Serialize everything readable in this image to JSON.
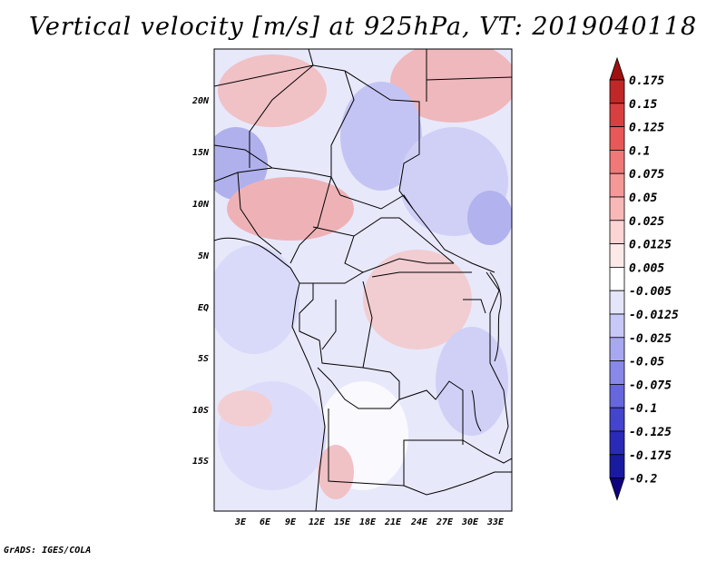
{
  "title": "Vertical velocity [m/s] at 925hPa, VT: 2019040118",
  "credit": "GrADS: IGES/COLA",
  "map": {
    "lat_ticks": [
      "20N",
      "15N",
      "10N",
      "5N",
      "EQ",
      "5S",
      "10S",
      "15S"
    ],
    "lon_ticks": [
      "3E",
      "6E",
      "9E",
      "12E",
      "15E",
      "18E",
      "21E",
      "24E",
      "27E",
      "30E",
      "33E"
    ]
  },
  "colorbar": {
    "labels": [
      "0.175",
      "0.15",
      "0.125",
      "0.1",
      "0.075",
      "0.05",
      "0.025",
      "0.0125",
      "0.005",
      "-0.005",
      "-0.0125",
      "-0.025",
      "-0.05",
      "-0.075",
      "-0.1",
      "-0.125",
      "-0.175",
      "-0.2"
    ],
    "colors": [
      "#a01010",
      "#c02828",
      "#d84040",
      "#e85858",
      "#f07878",
      "#f59898",
      "#f8b8b8",
      "#fbd4d4",
      "#fde8e8",
      "#ffffff",
      "#e4e4fb",
      "#c8c8f6",
      "#a8a8f0",
      "#8888e8",
      "#6666dd",
      "#4444cc",
      "#2a2ab8",
      "#1a1aa0",
      "#100080"
    ]
  }
}
